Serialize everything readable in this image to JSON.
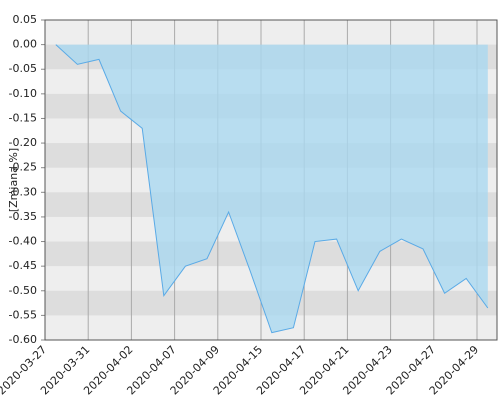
{
  "chart_data": {
    "type": "area",
    "y_label": "[Zmiana %]",
    "categories": [
      "2020-03-27",
      null,
      "2020-03-31",
      null,
      "2020-04-02",
      null,
      "2020-04-07",
      null,
      "2020-04-09",
      null,
      "2020-04-15",
      null,
      "2020-04-17",
      null,
      "2020-04-21",
      null,
      "2020-04-23",
      null,
      "2020-04-27",
      null,
      "2020-04-29"
    ],
    "values": [
      0.0,
      -0.04,
      -0.03,
      -0.135,
      -0.17,
      -0.51,
      -0.45,
      -0.435,
      -0.34,
      -0.46,
      -0.585,
      -0.575,
      -0.4,
      -0.395,
      -0.5,
      -0.42,
      -0.395,
      -0.415,
      -0.505,
      -0.475,
      -0.535
    ],
    "color": "#5aaae6",
    "fill": "#aad8f0",
    "ylim": [
      -0.6,
      0.05
    ],
    "yticks": [
      0.05,
      {
        "value": 0,
        "label": "0.00"
      },
      -0.05,
      {
        "value": -0.1,
        "label": "-0.10"
      },
      -0.15,
      {
        "value": -0.2,
        "label": "-0.20"
      },
      -0.25,
      {
        "value": -0.3,
        "label": "-0.30"
      },
      -0.35,
      {
        "value": -0.4,
        "label": "-0.40"
      },
      -0.45,
      {
        "value": -0.5,
        "label": "-0.50"
      },
      -0.55,
      {
        "value": -0.6,
        "label": "-0.60"
      }
    ],
    "grid": true
  }
}
